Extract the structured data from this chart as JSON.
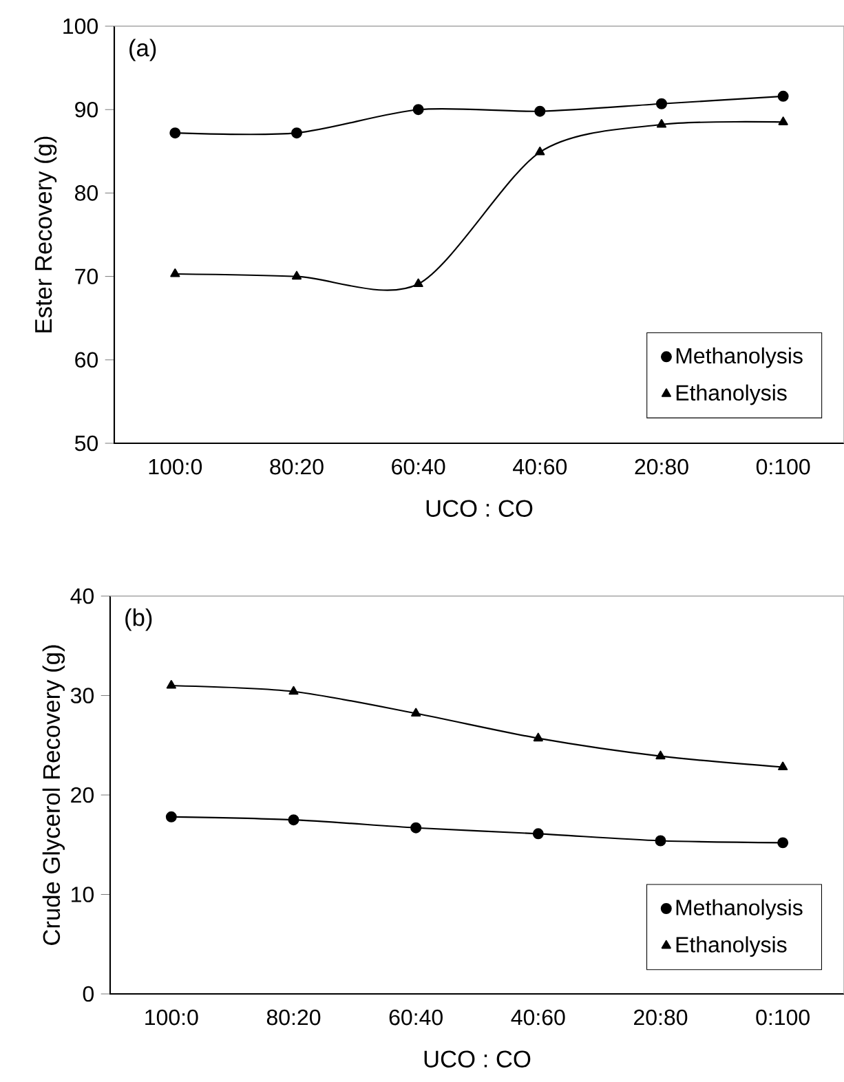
{
  "chart_data": [
    {
      "type": "line",
      "xlabel": "UCO : CO",
      "ylabel": "Ester Recovery (g)",
      "annotations": [
        "(a)"
      ],
      "categories": [
        "100:0",
        "80:20",
        "60:40",
        "40:60",
        "20:80",
        "0:100"
      ],
      "ylim": [
        50,
        100
      ],
      "yticks": [
        50,
        60,
        70,
        80,
        90,
        100
      ],
      "grid": false,
      "legend": "bottom right",
      "series": [
        {
          "name": "Methanolysis",
          "color": "#000000",
          "marker": "circle",
          "values": [
            87.2,
            87.2,
            90.0,
            89.8,
            90.7,
            91.6
          ]
        },
        {
          "name": "Ethanolysis",
          "color": "#000000",
          "marker": "triangle",
          "values": [
            70.3,
            70.0,
            69.1,
            84.9,
            88.2,
            88.5
          ]
        }
      ]
    },
    {
      "type": "line",
      "xlabel": "UCO : CO",
      "ylabel": "Crude Glycerol Recovery (g)",
      "annotations": [
        "(b)"
      ],
      "categories": [
        "100:0",
        "80:20",
        "60:40",
        "40:60",
        "20:80",
        "0:100"
      ],
      "ylim": [
        0,
        40
      ],
      "yticks": [
        0,
        10,
        20,
        30,
        40
      ],
      "grid": false,
      "legend": "bottom right",
      "series": [
        {
          "name": "Methanolysis",
          "color": "#000000",
          "marker": "circle",
          "values": [
            17.8,
            17.5,
            16.7,
            16.1,
            15.4,
            15.2
          ]
        },
        {
          "name": "Ethanolysis",
          "color": "#000000",
          "marker": "triangle",
          "values": [
            31.0,
            30.4,
            28.2,
            25.7,
            23.9,
            22.8
          ]
        }
      ]
    }
  ]
}
